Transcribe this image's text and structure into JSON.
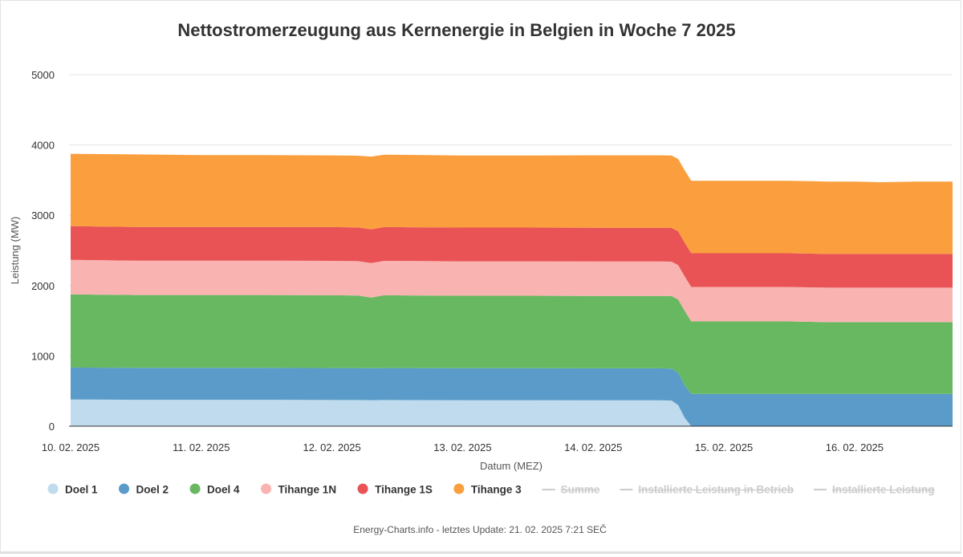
{
  "chart_data": {
    "type": "area",
    "stacked": true,
    "title": "Nettostromerzeugung aus Kernenergie in Belgien in Woche 7 2025",
    "xlabel": "Datum (MEZ)",
    "ylabel": "Leistung (MW)",
    "ylim": [
      0,
      5000
    ],
    "yticks": [
      "0",
      "1000",
      "2000",
      "3000",
      "4000",
      "5000"
    ],
    "xlim": [
      0,
      6.75
    ],
    "xticks": [
      {
        "x": 0,
        "label": "10. 02. 2025"
      },
      {
        "x": 1,
        "label": "11. 02. 2025"
      },
      {
        "x": 2,
        "label": "12. 02. 2025"
      },
      {
        "x": 3,
        "label": "13. 02. 2025"
      },
      {
        "x": 4,
        "label": "14. 02. 2025"
      },
      {
        "x": 5,
        "label": "15. 02. 2025"
      },
      {
        "x": 6,
        "label": "16. 02. 2025"
      }
    ],
    "grid": true,
    "legend_position": "bottom",
    "x": [
      0,
      0.5,
      1,
      1.5,
      2,
      2.2,
      2.3,
      2.4,
      3,
      3.5,
      4,
      4.5,
      4.6,
      4.65,
      4.7,
      4.75,
      4.8,
      5,
      5.5,
      5.8,
      5.9,
      6,
      6.2,
      6.5,
      6.75
    ],
    "series": [
      {
        "name": "Doel 1",
        "color": "#bfdbed",
        "values": [
          380,
          375,
          375,
          375,
          372,
          372,
          370,
          372,
          370,
          370,
          368,
          368,
          365,
          300,
          120,
          0,
          0,
          0,
          0,
          0,
          0,
          0,
          0,
          0,
          0
        ]
      },
      {
        "name": "Doel 2",
        "color": "#5a9bc9",
        "values": [
          455,
          455,
          455,
          455,
          455,
          455,
          455,
          455,
          455,
          455,
          455,
          455,
          455,
          460,
          460,
          460,
          460,
          460,
          460,
          460,
          460,
          460,
          460,
          460,
          460
        ]
      },
      {
        "name": "Doel 4",
        "color": "#68b862",
        "values": [
          1040,
          1035,
          1035,
          1035,
          1035,
          1030,
          1005,
          1035,
          1030,
          1030,
          1030,
          1030,
          1030,
          1040,
          1060,
          1030,
          1030,
          1030,
          1030,
          1020,
          1020,
          1020,
          1020,
          1020,
          1020
        ]
      },
      {
        "name": "Tihange 1N",
        "color": "#f9b3b1",
        "values": [
          490,
          490,
          490,
          490,
          490,
          490,
          490,
          490,
          490,
          490,
          490,
          490,
          490,
          490,
          490,
          490,
          490,
          490,
          490,
          490,
          490,
          490,
          490,
          490,
          490
        ]
      },
      {
        "name": "Tihange 1S",
        "color": "#e95355",
        "values": [
          480,
          480,
          480,
          480,
          480,
          480,
          480,
          480,
          480,
          480,
          480,
          480,
          480,
          480,
          480,
          480,
          480,
          480,
          480,
          480,
          480,
          480,
          480,
          480,
          480
        ]
      },
      {
        "name": "Tihange 3",
        "color": "#fb9f3e",
        "values": [
          1030,
          1030,
          1020,
          1020,
          1020,
          1020,
          1035,
          1030,
          1025,
          1025,
          1030,
          1030,
          1030,
          1030,
          1030,
          1030,
          1030,
          1030,
          1030,
          1030,
          1030,
          1030,
          1020,
          1030,
          1030
        ]
      }
    ],
    "hidden_series": [
      {
        "name": "Summe"
      },
      {
        "name": "Installierte Leistung in Betrieb"
      },
      {
        "name": "Installierte Leistung"
      }
    ],
    "credit": "Energy-Charts.info - letztes Update: 21. 02. 2025 7:21 SEČ"
  }
}
